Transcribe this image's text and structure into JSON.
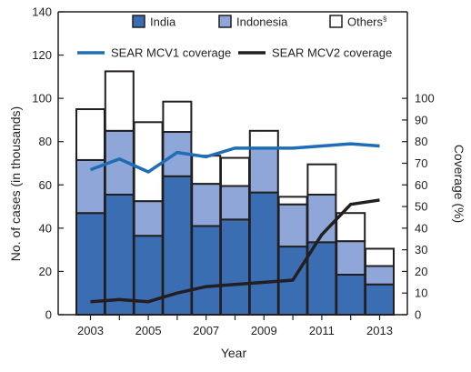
{
  "chart_data": {
    "type": "bar",
    "stacked": true,
    "xlabel": "Year",
    "ylabel": "No. of cases (in thousands)",
    "ylabel_right": "Coverage (%)",
    "ylim": [
      0,
      140
    ],
    "ylim_right": [
      0,
      140
    ],
    "yticks": [
      0,
      20,
      40,
      60,
      80,
      100,
      120,
      140
    ],
    "yticks_right": [
      0,
      10,
      20,
      30,
      40,
      50,
      60,
      70,
      80,
      90,
      100
    ],
    "years": [
      2003,
      2004,
      2005,
      2006,
      2007,
      2008,
      2009,
      2010,
      2011,
      2012,
      2013
    ],
    "xtick_labels": [
      "2003",
      "2005",
      "2007",
      "2009",
      "2011",
      "2013"
    ],
    "bar_series": [
      {
        "name": "India",
        "color": "#3b6db3",
        "values": [
          47,
          55.5,
          36.5,
          64,
          41,
          44,
          56.5,
          31.5,
          33.5,
          18.5,
          14
        ]
      },
      {
        "name": "Indonesia",
        "color": "#8ea7d8",
        "values": [
          24.5,
          29.5,
          16,
          20.5,
          19.5,
          15.5,
          20.5,
          19.5,
          22,
          15.5,
          8.5
        ]
      },
      {
        "name": "Others§",
        "color": "#ffffff",
        "values": [
          23.5,
          27.5,
          36.5,
          14,
          13,
          13,
          8,
          3.5,
          14,
          13,
          8
        ]
      }
    ],
    "line_series": [
      {
        "name": "SEAR MCV1 coverage",
        "color": "#1f6db5",
        "axis": "right",
        "values": [
          67,
          72,
          66,
          75,
          73,
          77,
          77,
          77,
          78,
          79,
          78
        ]
      },
      {
        "name": "SEAR MCV2 coverage",
        "color": "#231f20",
        "axis": "right",
        "values": [
          6,
          7,
          6,
          10,
          13,
          14,
          15,
          16,
          37,
          51,
          53
        ]
      }
    ]
  }
}
